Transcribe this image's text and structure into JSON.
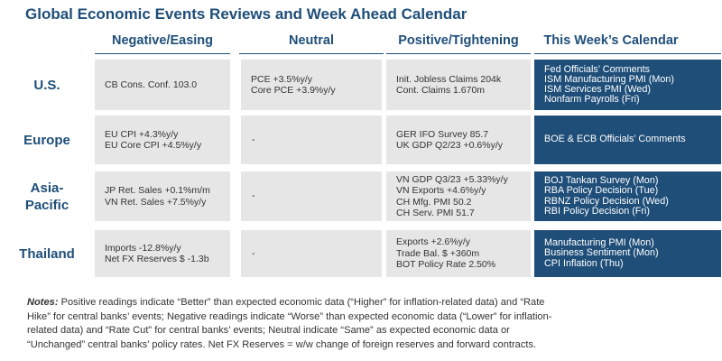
{
  "title": "Global Economic Events Reviews and Week Ahead Calendar",
  "columns": {
    "negative": "Negative/Easing",
    "neutral": "Neutral",
    "positive": "Positive/Tightening",
    "calendar": "This Week’s Calendar"
  },
  "rows": [
    {
      "region": "U.S.",
      "negative": [
        "CB Cons. Conf. 103.0"
      ],
      "neutral": [
        "PCE +3.5%y/y",
        "Core PCE +3.9%y/y"
      ],
      "positive": [
        "Init. Jobless Claims 204k",
        "Cont. Claims 1.670m"
      ],
      "calendar": [
        "Fed Officials’ Comments",
        "ISM Manufacturing PMI (Mon)",
        "ISM Services PMI (Wed)",
        "Nonfarm Payrolls (Fri)"
      ]
    },
    {
      "region": "Europe",
      "negative": [
        "EU CPI +4.3%y/y",
        "EU Core CPI +4.5%y/y"
      ],
      "neutral": [
        "-"
      ],
      "positive": [
        "GER IFO Survey 85.7",
        "UK GDP Q2/23 +0.6%y/y"
      ],
      "calendar": [
        "BOE & ECB Officials’ Comments"
      ]
    },
    {
      "region_lines": [
        "Asia-",
        "Pacific"
      ],
      "negative": [
        "JP Ret. Sales +0.1%m/m",
        "VN Ret. Sales +7.5%y/y"
      ],
      "neutral": [
        "-"
      ],
      "positive": [
        "VN GDP Q3/23 +5.33%y/y",
        "VN Exports +4.6%y/y",
        "CH Mfg. PMI 50.2",
        "CH Serv. PMI 51.7"
      ],
      "calendar": [
        "BOJ Tankan Survey (Mon)",
        "RBA Policy Decision (Tue)",
        "RBNZ Policy Decision (Wed)",
        "RBI Policy Decision (Fri)"
      ]
    },
    {
      "region": "Thailand",
      "negative": [
        "Imports -12.8%y/y",
        "Net FX Reserves $ -1.3b"
      ],
      "neutral": [
        "-"
      ],
      "positive": [
        "Exports +2.6%y/y",
        "Trade Bal. $ +360m",
        "BOT Policy Rate 2.50%"
      ],
      "calendar": [
        "Manufacturing PMI (Mon)",
        "Business Sentiment (Mon)",
        "CPI Inflation (Thu)"
      ]
    }
  ],
  "notes": {
    "label": "Notes:",
    "lines": [
      " Positive readings indicate “Better” than expected economic data (“Higher” for inflation-related data) and “Rate",
      "Hike” for central banks’ events; Negative readings indicate “Worse” than expected economic data (“Lower” for inflation-",
      "related data) and “Rate Cut” for central banks’ events; Neutral indicate “Same” as expected economic data or",
      "“Unchanged” central banks’ policy rates. Net FX Reserves = w/w change of foreign reserves and forward contracts."
    ]
  }
}
